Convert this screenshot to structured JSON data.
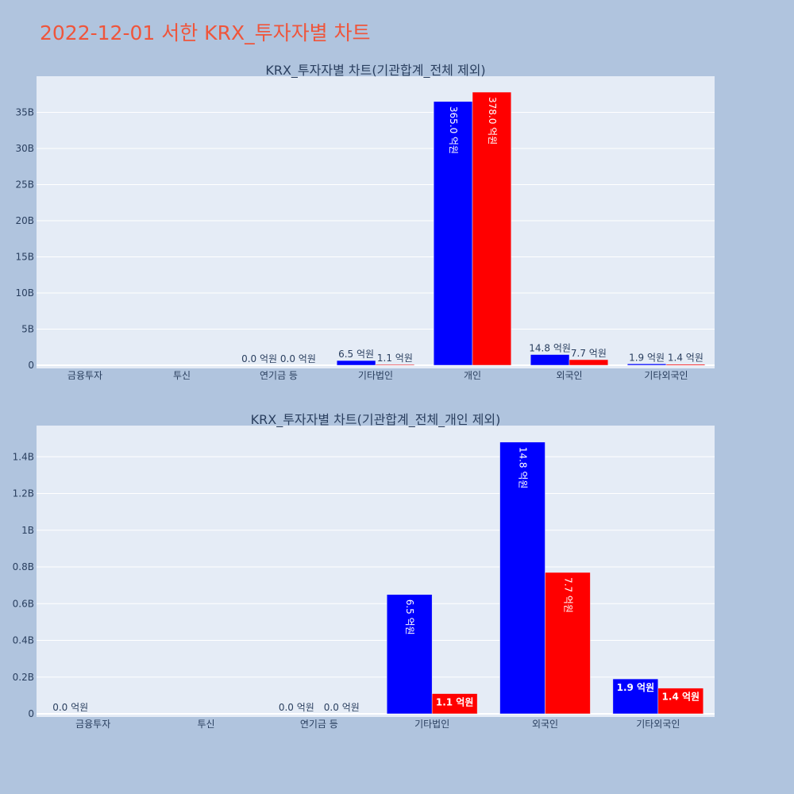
{
  "title": "2022-12-01 서한 KRX_투자자별 차트",
  "chart_data": [
    {
      "type": "bar",
      "title": "KRX_투자자별 차트(기관합계_전체 제외)",
      "categories": [
        "금융투자",
        "투신",
        "연기금 등",
        "기타법인",
        "개인",
        "외국인",
        "기타외국인"
      ],
      "ylim": [
        0,
        40000000000
      ],
      "yticks": [
        0,
        5000000000,
        10000000000,
        15000000000,
        20000000000,
        25000000000,
        30000000000,
        35000000000
      ],
      "ytick_labels": [
        "0",
        "5B",
        "10B",
        "15B",
        "20B",
        "25B",
        "30B",
        "35B"
      ],
      "grid": true,
      "legend": "none",
      "series": [
        {
          "color": "#0000ff",
          "values": [
            0,
            0,
            0,
            650000000,
            36500000000,
            1480000000,
            190000000
          ],
          "labels": [
            "",
            "",
            "0.0 억원",
            "6.5 억원",
            "365.0 억원",
            "14.8 억원",
            "1.9 억원"
          ]
        },
        {
          "color": "#ff0000",
          "values": [
            0,
            0,
            0,
            110000000,
            37800000000,
            770000000,
            140000000
          ],
          "labels": [
            "",
            "",
            "0.0 억원",
            "1.1 억원",
            "378.0 억원",
            "7.7 억원",
            "1.4 억원"
          ]
        }
      ]
    },
    {
      "type": "bar",
      "title": "KRX_투자자별 차트(기관합계_전체_개인 제외)",
      "categories": [
        "금융투자",
        "투신",
        "연기금 등",
        "기타법인",
        "외국인",
        "기타외국인"
      ],
      "ylim": [
        0,
        1570000000
      ],
      "yticks": [
        0,
        200000000,
        400000000,
        600000000,
        800000000,
        1000000000,
        1200000000,
        1400000000
      ],
      "ytick_labels": [
        "0",
        "0.2B",
        "0.4B",
        "0.6B",
        "0.8B",
        "1B",
        "1.2B",
        "1.4B"
      ],
      "grid": true,
      "legend": "none",
      "series": [
        {
          "color": "#0000ff",
          "values": [
            0,
            0,
            0,
            650000000,
            1480000000,
            190000000
          ],
          "labels": [
            "0.0 억원",
            "",
            "0.0 억원",
            "6.5 억원",
            "14.8 억원",
            "1.9 억원"
          ]
        },
        {
          "color": "#ff0000",
          "values": [
            0,
            0,
            0,
            110000000,
            770000000,
            140000000
          ],
          "labels": [
            "",
            "",
            "0.0 억원",
            "1.1 억원",
            "7.7 억원",
            "1.4 억원"
          ]
        }
      ]
    }
  ]
}
